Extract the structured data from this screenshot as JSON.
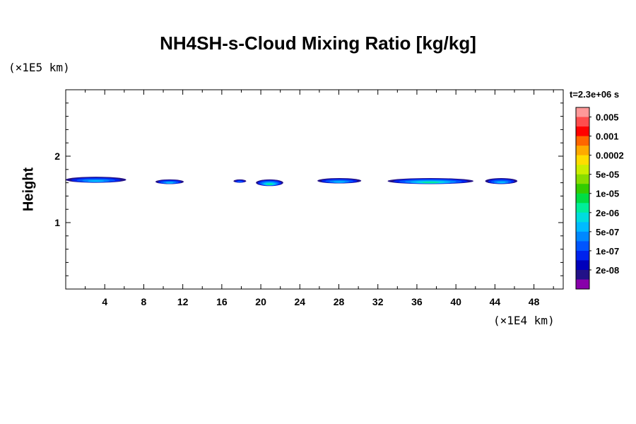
{
  "chart_data": {
    "type": "heatmap",
    "title": "NH4SH-s-Cloud Mixing Ratio [kg/kg]",
    "ylabel": "Height",
    "x_unit": "(×1E4 km)",
    "y_unit": "(×1E5 km)",
    "timestamp": "t=2.3e+06 s",
    "xlim": [
      0,
      51
    ],
    "ylim": [
      0,
      3
    ],
    "x_ticks": [
      "4",
      "8",
      "12",
      "16",
      "20",
      "24",
      "28",
      "32",
      "36",
      "40",
      "44",
      "48"
    ],
    "y_ticks": [
      "1",
      "2"
    ],
    "colorbar": {
      "labels": [
        "0.005",
        "0.001",
        "0.0002",
        "5e-05",
        "1e-05",
        "2e-06",
        "5e-07",
        "1e-07",
        "2e-08"
      ],
      "colors": [
        "#ff9999",
        "#ff4d4d",
        "#ff0000",
        "#ff6600",
        "#ffaa00",
        "#ffdd00",
        "#ccee00",
        "#88dd00",
        "#33cc00",
        "#00dd44",
        "#00ee99",
        "#00dddd",
        "#00bbff",
        "#0088ff",
        "#0055ff",
        "#0022ee",
        "#0000bb",
        "#221188",
        "#8800aa"
      ]
    },
    "cloud_layers": [
      {
        "x": [
          0.0,
          6.2
        ],
        "y": [
          1.6,
          1.69
        ],
        "max_level": "5e-07"
      },
      {
        "x": [
          9.2,
          12.1
        ],
        "y": [
          1.58,
          1.65
        ],
        "max_level": "5e-07"
      },
      {
        "x": [
          17.2,
          18.5
        ],
        "y": [
          1.6,
          1.65
        ],
        "max_level": "1e-07"
      },
      {
        "x": [
          19.5,
          22.3
        ],
        "y": [
          1.55,
          1.65
        ],
        "max_level": "2e-06"
      },
      {
        "x": [
          25.8,
          30.3
        ],
        "y": [
          1.59,
          1.67
        ],
        "max_level": "5e-07"
      },
      {
        "x": [
          33.0,
          41.8
        ],
        "y": [
          1.58,
          1.67
        ],
        "max_level": "2e-06"
      },
      {
        "x": [
          43.0,
          46.3
        ],
        "y": [
          1.58,
          1.67
        ],
        "max_level": "5e-07"
      }
    ]
  }
}
